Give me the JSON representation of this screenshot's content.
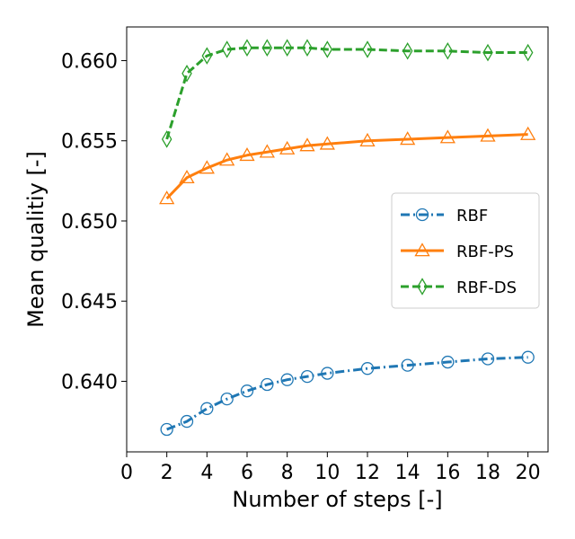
{
  "chart_data": {
    "type": "line",
    "title": "",
    "xlabel": "Number of steps [-]",
    "ylabel": "Mean qualitiy [-]",
    "xlim": [
      0,
      21
    ],
    "ylim": [
      0.6356,
      0.6621
    ],
    "xticks": [
      0,
      2,
      4,
      6,
      8,
      10,
      12,
      14,
      16,
      18,
      20
    ],
    "xtick_labels": [
      "0",
      "2",
      "4",
      "6",
      "8",
      "10",
      "12",
      "14",
      "16",
      "18",
      "20"
    ],
    "yticks": [
      0.64,
      0.645,
      0.65,
      0.655,
      0.66
    ],
    "ytick_labels": [
      "0.640",
      "0.645",
      "0.650",
      "0.655",
      "0.660"
    ],
    "grid": false,
    "legend_position": "center-right",
    "series": [
      {
        "name": "RBF",
        "color": "#1f77b4",
        "linestyle": "dashdot",
        "marker": "circle",
        "x": [
          2,
          3,
          4,
          5,
          6,
          7,
          8,
          9,
          10,
          12,
          14,
          16,
          18,
          20
        ],
        "y": [
          0.637,
          0.6375,
          0.6383,
          0.6389,
          0.6394,
          0.6398,
          0.6401,
          0.6403,
          0.6405,
          0.6408,
          0.641,
          0.6412,
          0.6414,
          0.6415
        ]
      },
      {
        "name": "RBF-PS",
        "color": "#ff7f0e",
        "linestyle": "solid",
        "marker": "triangle",
        "x": [
          2,
          3,
          4,
          5,
          6,
          7,
          8,
          9,
          10,
          12,
          14,
          16,
          18,
          20
        ],
        "y": [
          0.6514,
          0.6527,
          0.6533,
          0.6538,
          0.6541,
          0.6543,
          0.6545,
          0.6547,
          0.6548,
          0.655,
          0.6551,
          0.6552,
          0.6553,
          0.6554
        ]
      },
      {
        "name": "RBF-DS",
        "color": "#2ca02c",
        "linestyle": "dashed",
        "marker": "diamond",
        "x": [
          2,
          3,
          4,
          5,
          6,
          7,
          8,
          9,
          10,
          12,
          14,
          16,
          18,
          20
        ],
        "y": [
          0.6551,
          0.6592,
          0.6603,
          0.6607,
          0.6608,
          0.6608,
          0.6608,
          0.6608,
          0.6607,
          0.6607,
          0.6606,
          0.6606,
          0.6605,
          0.6605
        ]
      }
    ]
  }
}
